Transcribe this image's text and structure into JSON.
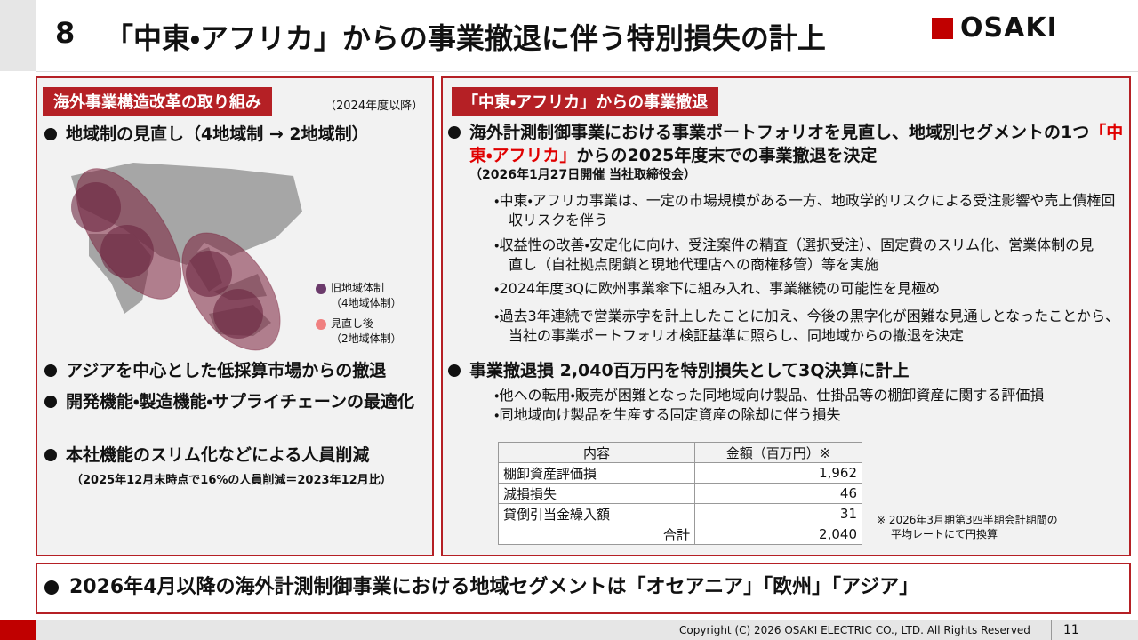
{
  "header": {
    "number": "8",
    "title": "「中東・アフリカ」からの事業撤退に伴う特別損失の計上",
    "logo": "OSAKI"
  },
  "left": {
    "tag": "海外事業構造改革の取り組み",
    "tag_note": "（2024年度以降）",
    "bullets": [
      "地域制の見直し（4地域制 → 2地域制）",
      "アジアを中心とした低採算市場からの撤退",
      "開発機能・製造機能・サプライチェーンの最適化",
      "本社機能のスリム化などによる人員削減"
    ],
    "legend": [
      {
        "lines": [
          "旧地域体制",
          "（4地域体制）"
        ]
      },
      {
        "lines": [
          "見直し後",
          "（2地域体制）"
        ]
      }
    ],
    "note": "（2025年12月末時点で16%の人員削減＝2023年12月比）"
  },
  "right": {
    "tag": "「中東・アフリカ」からの事業撤退",
    "bullet1": {
      "before": "海外計測制御事業における事業ポートフォリオを見直し、地域別セグメントの1つ",
      "highlight": "「中東・アフリカ」",
      "after": "からの2025年度末での事業撤退を決定"
    },
    "bullet1_note": "（2026年1月27日開催 当社取締役会）",
    "sub1": [
      "・中東・アフリカ事業は、一定の市場規模がある一方、地政学的リスクによる受注影響や売上債権回収リスクを伴う",
      "・収益性の改善・安定化に向け、受注案件の精査（選択受注）、固定費のスリム化、営業体制の見直し（自社拠点閉鎖と現地代理店への商権移管）等を実施",
      "・2024年度3Qに欧州事業傘下に組み入れ、事業継続の可能性を見極め",
      "・過去3年連続で営業赤字を計上したことに加え、今後の黒字化が困難な見通しとなったことから、当社の事業ポートフォリオ検証基準に照らし、同地域からの撤退を決定"
    ],
    "bullet2": "事業撤退損 2,040百万円を特別損失として3Q決算に計上",
    "sub2": [
      "・他への転用・販売が困難となった同地域向け製品、仕掛品等の棚卸資産に関する評価損",
      "・同地域向け製品を生産する固定資産の除却に伴う損失"
    ],
    "table": {
      "header": [
        "内容",
        "金額（百万円）※"
      ],
      "rows": [
        [
          "棚卸資産評価損",
          "1,962"
        ],
        [
          "減損損失",
          "46"
        ],
        [
          "貸倒引当金繰入額",
          "31"
        ]
      ],
      "total": [
        "合計",
        "2,040"
      ]
    },
    "table_note": [
      "※ 2026年3月期第3四半期会計期間の",
      "平均レートにて円換算"
    ]
  },
  "bottom": "2026年4月以降の海外計測制御事業における地域セグメントは「オセアニア」「欧州」「アジア」",
  "footer": {
    "copyright": "Copyright (C) 2026 OSAKI ELECTRIC CO., LTD. All Rights Reserved",
    "page": "11"
  }
}
